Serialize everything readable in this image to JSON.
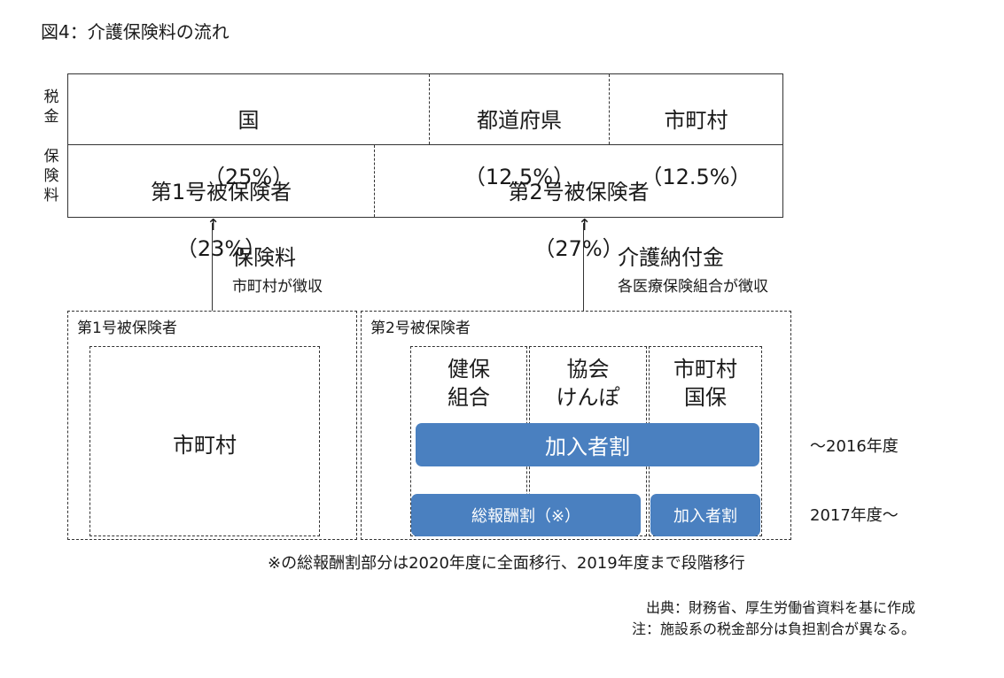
{
  "title": "図4：介護保険料の流れ",
  "side_labels": {
    "tax": "税\n金",
    "premium": "保\n険\n料"
  },
  "funding": {
    "national": {
      "name": "国",
      "pct": "（25%）"
    },
    "prefecture": {
      "name": "都道府県",
      "pct": "（12.5%）"
    },
    "municipal": {
      "name": "市町村",
      "pct": "（12.5%）"
    },
    "insured1": {
      "name": "第1号被保険者",
      "pct": "（23%）"
    },
    "insured2": {
      "name": "第2号被保険者",
      "pct": "（27%）"
    }
  },
  "flows": {
    "left": {
      "title": "保険料",
      "sub": "市町村が徴収"
    },
    "right": {
      "title": "介護納付金",
      "sub": "各医療保険組合が徴収"
    }
  },
  "group1": {
    "title": "第1号被保険者",
    "inner": "市町村"
  },
  "group2": {
    "title": "第2号被保険者",
    "insurers": [
      "健保\n組合",
      "協会\nけんぽ",
      "市町村\n国保"
    ]
  },
  "bars": {
    "until2016": "加入者割",
    "total_pay": "総報酬割（※）",
    "per_member": "加入者割"
  },
  "years": {
    "until2016": "～2016年度",
    "from2017": "2017年度～"
  },
  "note": "※の総報酬割部分は2020年度に全面移行、2019年度まで段階移行",
  "source": "出典：財務省、厚生労働省資料を基に作成",
  "caveat": "注：施設系の税金部分は負担割合が異なる。",
  "colors": {
    "bar": "#4a80c0",
    "line": "#333333"
  }
}
